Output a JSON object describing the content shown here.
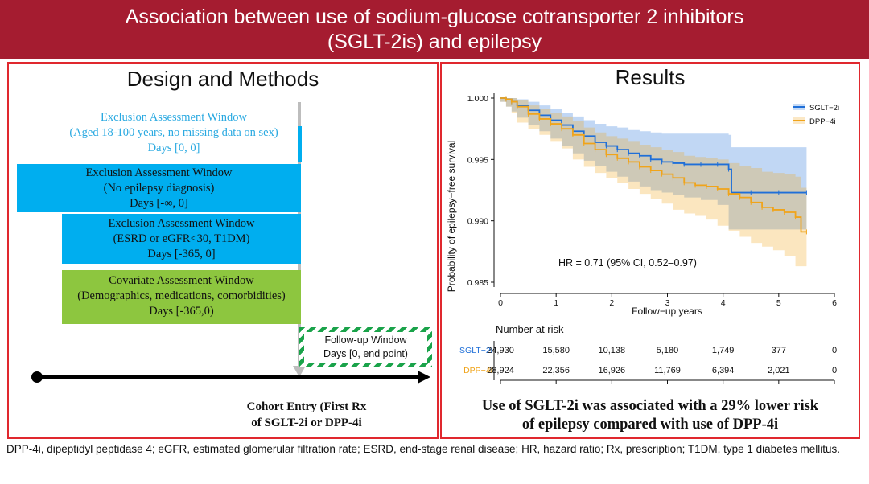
{
  "header": {
    "line1": "Association between use of sodium-glucose cotransporter 2 inhibitors",
    "line2": "(SGLT-2is) and epilepsy"
  },
  "design": {
    "title": "Design and Methods",
    "windows": [
      {
        "lines": [
          "Exclusion Assessment Window",
          "(Aged 18-100 years, no missing data on sex)",
          "Days [0, 0]"
        ]
      },
      {
        "lines": [
          "Exclusion Assessment Window",
          "(No epilepsy diagnosis)",
          "Days [-∞, 0]"
        ]
      },
      {
        "lines": [
          "Exclusion Assessment Window",
          "(ESRD or eGFR<30, T1DM)",
          "Days [-365, 0]"
        ]
      },
      {
        "lines": [
          "Covariate Assessment Window",
          "(Demographics, medications, comorbidities)",
          "Days [-365,0)"
        ]
      }
    ],
    "followup": {
      "line1": "Follow-up Window",
      "line2": "Days [0, end point)"
    },
    "cohort_entry": {
      "line1": "Cohort Entry (First Rx",
      "line2": "of SGLT-2i or DPP-4i"
    }
  },
  "results": {
    "title": "Results",
    "hr_text": "HR = 0.71 (95% CI, 0.52–0.97)",
    "risk_title": "Number at risk",
    "risk_table": [
      {
        "label": "SGLT−2i",
        "values": [
          "24,930",
          "15,580",
          "10,138",
          "5,180",
          "1,749",
          "377",
          "0"
        ]
      },
      {
        "label": "DPP−4i",
        "values": [
          "28,924",
          "22,356",
          "16,926",
          "11,769",
          "6,394",
          "2,021",
          "0"
        ]
      }
    ],
    "conclusion_line1": "Use of SGLT-2i was associated with a 29% lower risk",
    "conclusion_line2": "of epilepsy compared with use of DPP-4i"
  },
  "footnote": "DPP-4i, dipeptidyl peptidase 4; eGFR, estimated glomerular filtration rate; ESRD, end-stage renal disease; HR, hazard ratio; Rx, prescription; T1DM, type 1 diabetes mellitus.",
  "colors": {
    "sglt": "#1f6fd8",
    "dpp": "#f0a41a",
    "header_bg": "#a51c30",
    "exclusion_box": "#00aeef",
    "covariate_box": "#8dc63f",
    "followup": "#1aa34a"
  },
  "chart_data": {
    "type": "line",
    "title": "",
    "xlabel": "Follow−up years",
    "ylabel": "Probability of epilepsy−free survival",
    "xlim": [
      0,
      6
    ],
    "ylim": [
      0.985,
      1.0
    ],
    "x_ticks": [
      0,
      1,
      2,
      3,
      4,
      5,
      6
    ],
    "y_ticks": [
      0.985,
      0.99,
      0.995,
      1.0
    ],
    "y_tick_labels": [
      "0.985",
      "0.990",
      "0.995",
      "1.000"
    ],
    "series": [
      {
        "name": "SGLT−2i",
        "x": [
          0,
          0.1,
          0.2,
          0.3,
          0.5,
          0.7,
          0.9,
          1.1,
          1.3,
          1.5,
          1.7,
          1.9,
          2.1,
          2.3,
          2.5,
          2.7,
          2.9,
          3.1,
          3.3,
          3.6,
          3.9,
          4.1,
          4.15,
          4.5,
          5.0,
          5.5
        ],
        "y": [
          1.0,
          0.9999,
          0.9997,
          0.9994,
          0.999,
          0.9986,
          0.9982,
          0.9978,
          0.9973,
          0.9969,
          0.9964,
          0.9961,
          0.9958,
          0.9955,
          0.9953,
          0.995,
          0.9948,
          0.9947,
          0.9946,
          0.9946,
          0.9946,
          0.9942,
          0.9923,
          0.9923,
          0.9923,
          0.9923
        ],
        "ci_upper": [
          1.0,
          1.0,
          1.0,
          0.9999,
          0.9997,
          0.9994,
          0.9991,
          0.9988,
          0.9985,
          0.9982,
          0.9979,
          0.9977,
          0.9976,
          0.9974,
          0.9973,
          0.9972,
          0.9971,
          0.9971,
          0.9971,
          0.9971,
          0.9971,
          0.997,
          0.996,
          0.996,
          0.996,
          0.996
        ],
        "ci_lower": [
          1.0,
          0.9997,
          0.9993,
          0.9989,
          0.9984,
          0.9978,
          0.9973,
          0.9967,
          0.9961,
          0.9955,
          0.9949,
          0.9945,
          0.994,
          0.9936,
          0.9932,
          0.9928,
          0.9925,
          0.9923,
          0.9921,
          0.9919,
          0.9917,
          0.9913,
          0.9893,
          0.9893,
          0.9893,
          0.9893
        ]
      },
      {
        "name": "DPP−4i",
        "x": [
          0,
          0.1,
          0.2,
          0.3,
          0.5,
          0.7,
          0.9,
          1.1,
          1.3,
          1.5,
          1.7,
          1.9,
          2.1,
          2.3,
          2.5,
          2.7,
          2.9,
          3.1,
          3.3,
          3.5,
          3.7,
          3.9,
          4.1,
          4.3,
          4.5,
          4.7,
          4.9,
          5.1,
          5.3,
          5.4,
          5.5
        ],
        "y": [
          1.0,
          0.9999,
          0.9997,
          0.9993,
          0.9987,
          0.9983,
          0.9979,
          0.9975,
          0.997,
          0.9963,
          0.9958,
          0.9954,
          0.9951,
          0.9948,
          0.9944,
          0.9941,
          0.9938,
          0.9935,
          0.9931,
          0.9929,
          0.9928,
          0.9926,
          0.9922,
          0.9919,
          0.9915,
          0.9911,
          0.9909,
          0.9907,
          0.9903,
          0.9891,
          0.9891
        ],
        "ci_upper": [
          1.0,
          1.0,
          1.0,
          0.9998,
          0.9994,
          0.9991,
          0.9988,
          0.9985,
          0.9981,
          0.9976,
          0.9972,
          0.9969,
          0.9967,
          0.9965,
          0.9962,
          0.996,
          0.9958,
          0.9956,
          0.9953,
          0.9952,
          0.9951,
          0.995,
          0.9947,
          0.9945,
          0.9943,
          0.994,
          0.9939,
          0.9938,
          0.9936,
          0.9927,
          0.9927
        ],
        "ci_lower": [
          1.0,
          0.9997,
          0.9993,
          0.9988,
          0.998,
          0.9975,
          0.997,
          0.9965,
          0.9959,
          0.995,
          0.9944,
          0.9939,
          0.9935,
          0.9931,
          0.9926,
          0.9922,
          0.9918,
          0.9914,
          0.9909,
          0.9906,
          0.9904,
          0.9901,
          0.9896,
          0.9892,
          0.9887,
          0.9882,
          0.9879,
          0.9876,
          0.9871,
          0.9863,
          0.9863
        ]
      }
    ],
    "annotation": "HR = 0.71 (95% CI, 0.52–0.97)",
    "legend": "top-right"
  }
}
